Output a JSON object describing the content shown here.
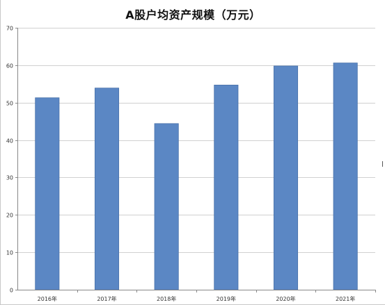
{
  "chart_data": {
    "type": "bar",
    "title": "A股户均资产规模（万元）",
    "categories": [
      "2016年",
      "2017年",
      "2018年",
      "2019年",
      "2020年",
      "2021年"
    ],
    "values": [
      51.3,
      53.9,
      44.4,
      54.7,
      59.8,
      60.6
    ],
    "ylim": [
      0,
      70
    ],
    "yticks": [
      0,
      10,
      20,
      30,
      40,
      50,
      60,
      70
    ],
    "xlabel": "",
    "ylabel": "",
    "grid": true,
    "bar_color": "#5b87c4",
    "bar_edge_color": "#4a72aa",
    "grid_color": "#d0d0d0",
    "axis_color": "#888888"
  }
}
